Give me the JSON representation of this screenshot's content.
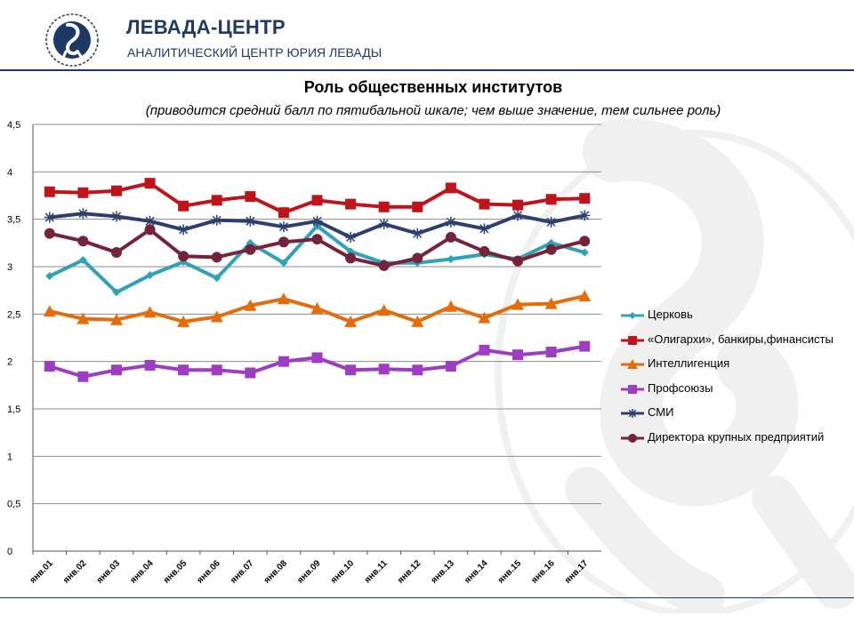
{
  "header": {
    "title": "ЛЕВАДА-ЦЕНТР",
    "subtitle": "АНАЛИТИЧЕСКИЙ ЦЕНТР ЮРИЯ ЛЕВАДЫ",
    "logo_icon": "levada-logo-icon"
  },
  "colors": {
    "brand": "#1f3864",
    "grid": "#8c8c8c",
    "watermark": "#f0f0f0"
  },
  "chart_data": {
    "type": "line",
    "title": "Роль общественных институтов",
    "subtitle": "(приводится средний балл по пятибальной шкале; чем выше значение, тем сильнее роль)",
    "categories": [
      "янв.01",
      "янв.02",
      "янв.03",
      "янв.04",
      "янв.05",
      "янв.06",
      "янв.07",
      "янв.08",
      "янв.09",
      "янв.10",
      "янв.11",
      "янв.12",
      "янв.13",
      "янв.14",
      "янв.15",
      "янв.16",
      "янв.17"
    ],
    "ylim": [
      0,
      4.5
    ],
    "yticks": [
      "0",
      "0,5",
      "1",
      "1,5",
      "2",
      "2,5",
      "3",
      "3,5",
      "4",
      "4,5"
    ],
    "grid": true,
    "legend_position": "right",
    "series": [
      {
        "name": "Церковь",
        "color": "#31a1b7",
        "marker": "diamond",
        "values": [
          2.9,
          3.07,
          2.73,
          2.91,
          3.05,
          2.88,
          3.25,
          3.04,
          3.43,
          3.16,
          3.04,
          3.04,
          3.08,
          3.13,
          3.08,
          3.25,
          3.15
        ]
      },
      {
        "name": "«Олигархи», банкиры,финансисты",
        "color": "#c0141d",
        "marker": "square",
        "values": [
          3.79,
          3.78,
          3.8,
          3.88,
          3.64,
          3.7,
          3.74,
          3.57,
          3.7,
          3.66,
          3.63,
          3.63,
          3.83,
          3.66,
          3.65,
          3.71,
          3.72
        ]
      },
      {
        "name": "Интеллигенция",
        "color": "#e46c0a",
        "marker": "triangle",
        "values": [
          2.53,
          2.45,
          2.44,
          2.52,
          2.42,
          2.47,
          2.59,
          2.66,
          2.56,
          2.42,
          2.54,
          2.42,
          2.58,
          2.46,
          2.6,
          2.61,
          2.69
        ]
      },
      {
        "name": "Профсоюзы",
        "color": "#9e3cc2",
        "marker": "square",
        "values": [
          1.95,
          1.84,
          1.91,
          1.96,
          1.91,
          1.91,
          1.88,
          2.0,
          2.04,
          1.91,
          1.92,
          1.91,
          1.95,
          2.12,
          2.07,
          2.1,
          2.16
        ]
      },
      {
        "name": "СМИ",
        "color": "#2e3f6e",
        "marker": "star",
        "values": [
          3.52,
          3.56,
          3.53,
          3.48,
          3.39,
          3.49,
          3.48,
          3.42,
          3.48,
          3.31,
          3.45,
          3.35,
          3.47,
          3.4,
          3.54,
          3.47,
          3.54
        ]
      },
      {
        "name": "Директора крупных предприятий",
        "color": "#74233a",
        "marker": "circle",
        "values": [
          3.35,
          3.27,
          3.15,
          3.39,
          3.11,
          3.1,
          3.18,
          3.26,
          3.29,
          3.09,
          3.01,
          3.09,
          3.31,
          3.16,
          3.06,
          3.18,
          3.27
        ]
      }
    ]
  }
}
